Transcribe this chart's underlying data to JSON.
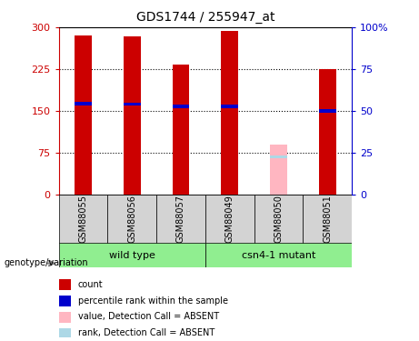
{
  "title": "GDS1744 / 255947_at",
  "samples": [
    "GSM88055",
    "GSM88056",
    "GSM88057",
    "GSM88049",
    "GSM88050",
    "GSM88051"
  ],
  "red_values": [
    285,
    284,
    233,
    294,
    0,
    225
  ],
  "blue_values": [
    163,
    162,
    158,
    158,
    0,
    150
  ],
  "absent_red": [
    0,
    0,
    0,
    0,
    90,
    0
  ],
  "absent_blue": [
    0,
    0,
    0,
    0,
    68,
    0
  ],
  "is_absent": [
    false,
    false,
    false,
    false,
    true,
    false
  ],
  "ylim_left": [
    0,
    300
  ],
  "ylim_right": [
    0,
    100
  ],
  "yticks_left": [
    0,
    75,
    150,
    225,
    300
  ],
  "yticks_right": [
    0,
    25,
    50,
    75,
    100
  ],
  "bar_color_red": "#cc0000",
  "bar_color_pink": "#ffb6c1",
  "bar_color_blue": "#0000cc",
  "bar_color_lightblue": "#add8e6",
  "bar_width": 0.35,
  "left_axis_color": "#cc0000",
  "right_axis_color": "#0000cc",
  "group_box_color": "#d3d3d3",
  "group_green": "#90ee90",
  "wild_type_label": "wild type",
  "mutant_label": "csn4-1 mutant",
  "genotype_label": "genotype/variation",
  "legend_items": [
    "count",
    "percentile rank within the sample",
    "value, Detection Call = ABSENT",
    "rank, Detection Call = ABSENT"
  ],
  "legend_colors": [
    "#cc0000",
    "#0000cc",
    "#ffb6c1",
    "#add8e6"
  ]
}
